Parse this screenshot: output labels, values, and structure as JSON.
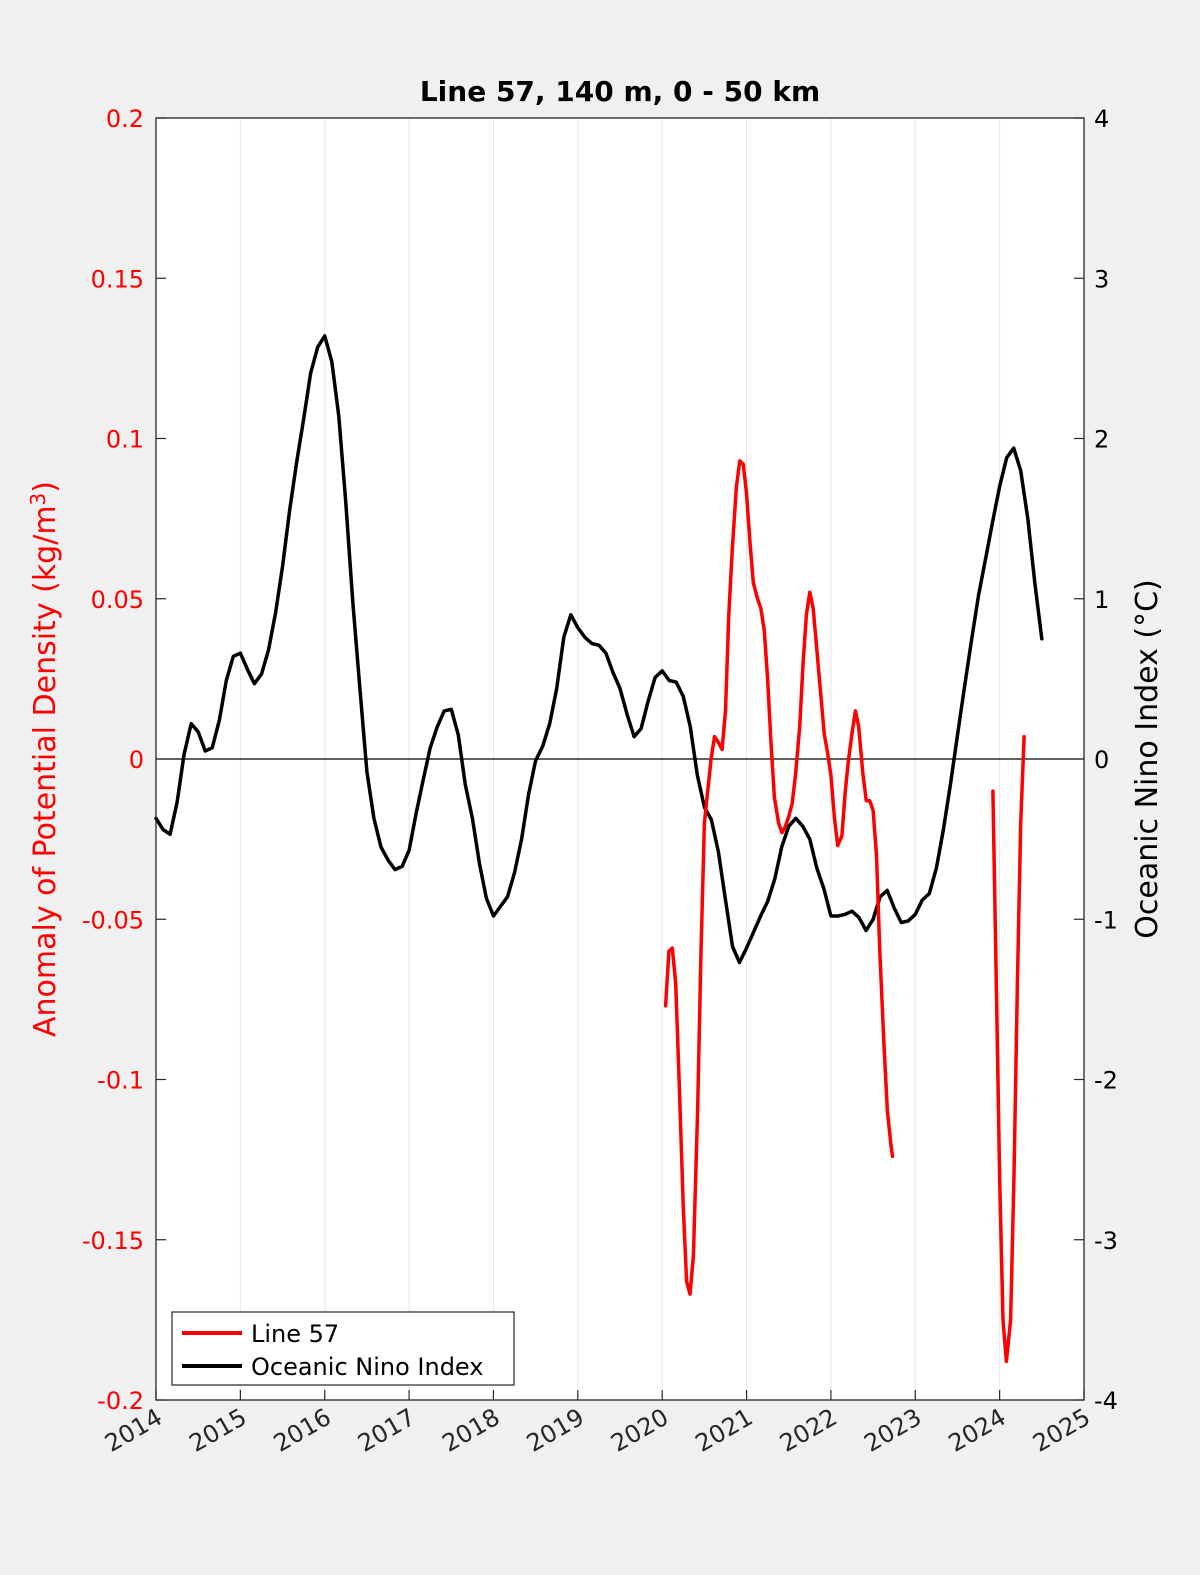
{
  "chart_data": {
    "type": "line",
    "title": "Line 57, 140 m, 0 - 50 km",
    "ylabel_left": "Anomaly of Potential Density (kg/m",
    "ylabel_left_sup": "3",
    "ylabel_left_close": ")",
    "ylabel_right": "Oceanic Nino Index (°C)",
    "xlim": [
      2014,
      2025
    ],
    "ylim_left": [
      -0.2,
      0.2
    ],
    "ylim_right": [
      -4,
      4
    ],
    "x_ticks": [
      "2014",
      "2015",
      "2016",
      "2017",
      "2018",
      "2019",
      "2020",
      "2021",
      "2022",
      "2023",
      "2024",
      "2025"
    ],
    "y_left_ticks": [
      "0.2",
      "0.15",
      "0.1",
      "0.05",
      "0",
      "-0.05",
      "-0.1",
      "-0.15",
      "-0.2"
    ],
    "y_right_ticks": [
      "4",
      "3",
      "2",
      "1",
      "0",
      "-1",
      "-2",
      "-3",
      "-4"
    ],
    "grid": "vertical",
    "zero_line": true,
    "legend_position": "bottom-left",
    "colors": {
      "left_axis": "#ff0000",
      "line57": "#ff0000",
      "oni": "#000000",
      "plot_bg": "#ffffff",
      "figure_bg": "#f0f0f0",
      "grid": "#e6e6e6"
    },
    "series": [
      {
        "name": "Line 57",
        "axis": "left",
        "color": "#ff0000",
        "segments": [
          [
            [
              2020.04,
              -0.077
            ],
            [
              2020.08,
              -0.06
            ],
            [
              2020.12,
              -0.059
            ],
            [
              2020.16,
              -0.07
            ],
            [
              2020.2,
              -0.1
            ],
            [
              2020.25,
              -0.14
            ],
            [
              2020.29,
              -0.163
            ],
            [
              2020.33,
              -0.167
            ],
            [
              2020.37,
              -0.155
            ],
            [
              2020.42,
              -0.11
            ],
            [
              2020.46,
              -0.06
            ],
            [
              2020.5,
              -0.02
            ],
            [
              2020.54,
              -0.01
            ],
            [
              2020.58,
              0.0
            ],
            [
              2020.62,
              0.007
            ],
            [
              2020.67,
              0.005
            ],
            [
              2020.71,
              0.003
            ],
            [
              2020.75,
              0.015
            ],
            [
              2020.79,
              0.045
            ],
            [
              2020.83,
              0.065
            ],
            [
              2020.88,
              0.085
            ],
            [
              2020.92,
              0.093
            ],
            [
              2020.96,
              0.092
            ],
            [
              2021.0,
              0.083
            ],
            [
              2021.04,
              0.068
            ],
            [
              2021.08,
              0.055
            ],
            [
              2021.13,
              0.05
            ],
            [
              2021.17,
              0.047
            ],
            [
              2021.21,
              0.04
            ],
            [
              2021.25,
              0.025
            ],
            [
              2021.29,
              0.005
            ],
            [
              2021.33,
              -0.012
            ],
            [
              2021.38,
              -0.02
            ],
            [
              2021.42,
              -0.023
            ],
            [
              2021.46,
              -0.021
            ],
            [
              2021.5,
              -0.018
            ],
            [
              2021.54,
              -0.014
            ],
            [
              2021.58,
              -0.005
            ],
            [
              2021.63,
              0.01
            ],
            [
              2021.67,
              0.03
            ],
            [
              2021.71,
              0.045
            ],
            [
              2021.75,
              0.052
            ],
            [
              2021.79,
              0.047
            ],
            [
              2021.83,
              0.035
            ],
            [
              2021.88,
              0.02
            ],
            [
              2021.92,
              0.008
            ],
            [
              2021.96,
              0.002
            ],
            [
              2022.0,
              -0.005
            ],
            [
              2022.04,
              -0.018
            ],
            [
              2022.08,
              -0.027
            ],
            [
              2022.13,
              -0.024
            ],
            [
              2022.17,
              -0.01
            ],
            [
              2022.21,
              0.0
            ],
            [
              2022.25,
              0.008
            ],
            [
              2022.29,
              0.015
            ],
            [
              2022.33,
              0.01
            ],
            [
              2022.38,
              -0.005
            ],
            [
              2022.42,
              -0.013
            ],
            [
              2022.46,
              -0.013
            ],
            [
              2022.5,
              -0.016
            ],
            [
              2022.54,
              -0.03
            ],
            [
              2022.58,
              -0.06
            ],
            [
              2022.63,
              -0.09
            ],
            [
              2022.67,
              -0.11
            ],
            [
              2022.71,
              -0.12
            ],
            [
              2022.73,
              -0.124
            ]
          ],
          [
            [
              2023.92,
              -0.01
            ],
            [
              2023.96,
              -0.07
            ],
            [
              2024.0,
              -0.13
            ],
            [
              2024.04,
              -0.175
            ],
            [
              2024.08,
              -0.188
            ],
            [
              2024.13,
              -0.175
            ],
            [
              2024.17,
              -0.13
            ],
            [
              2024.21,
              -0.07
            ],
            [
              2024.25,
              -0.02
            ],
            [
              2024.29,
              0.007
            ]
          ]
        ]
      },
      {
        "name": "Oceanic Nino Index",
        "axis": "right",
        "color": "#000000",
        "x_start": 2014.0,
        "x_step": 0.0833333,
        "values": [
          -0.37,
          -0.44,
          -0.47,
          -0.27,
          0.03,
          0.22,
          0.17,
          0.05,
          0.07,
          0.24,
          0.49,
          0.64,
          0.66,
          0.56,
          0.47,
          0.53,
          0.68,
          0.91,
          1.2,
          1.55,
          1.85,
          2.12,
          2.41,
          2.57,
          2.64,
          2.48,
          2.14,
          1.6,
          0.98,
          0.44,
          -0.08,
          -0.37,
          -0.55,
          -0.63,
          -0.69,
          -0.67,
          -0.57,
          -0.34,
          -0.13,
          0.07,
          0.2,
          0.3,
          0.31,
          0.15,
          -0.16,
          -0.37,
          -0.65,
          -0.87,
          -0.98,
          -0.92,
          -0.86,
          -0.71,
          -0.5,
          -0.22,
          -0.01,
          0.08,
          0.22,
          0.44,
          0.76,
          0.9,
          0.82,
          0.76,
          0.72,
          0.71,
          0.66,
          0.54,
          0.44,
          0.28,
          0.14,
          0.19,
          0.36,
          0.51,
          0.55,
          0.49,
          0.48,
          0.39,
          0.2,
          -0.1,
          -0.3,
          -0.38,
          -0.58,
          -0.88,
          -1.17,
          -1.27,
          -1.18,
          -1.08,
          -0.98,
          -0.89,
          -0.75,
          -0.55,
          -0.42,
          -0.37,
          -0.42,
          -0.5,
          -0.68,
          -0.81,
          -0.98,
          -0.98,
          -0.97,
          -0.95,
          -0.99,
          -1.07,
          -1.0,
          -0.86,
          -0.82,
          -0.93,
          -1.02,
          -1.01,
          -0.97,
          -0.88,
          -0.84,
          -0.68,
          -0.44,
          -0.16,
          0.15,
          0.45,
          0.74,
          1.02,
          1.25,
          1.48,
          1.7,
          1.88,
          1.94,
          1.8,
          1.5,
          1.1,
          0.75
        ]
      }
    ]
  }
}
